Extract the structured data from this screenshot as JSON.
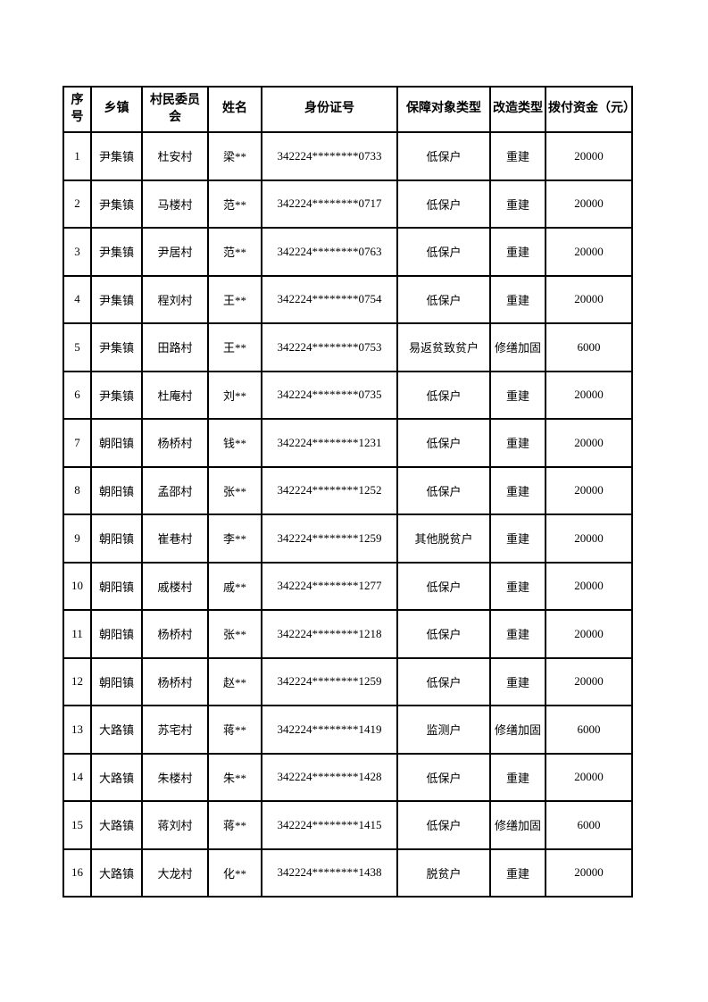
{
  "page": {
    "background_color": "#ffffff",
    "text_color": "#000000",
    "border_color": "#000000"
  },
  "table": {
    "headers": [
      "序号",
      "乡镇",
      "村民委员会",
      "姓名",
      "身份证号",
      "保障对象类型",
      "改造类型",
      "拨付资金（元）"
    ],
    "rows": [
      [
        "1",
        "尹集镇",
        "杜安村",
        "梁**",
        "342224********0733",
        "低保户",
        "重建",
        "20000"
      ],
      [
        "2",
        "尹集镇",
        "马楼村",
        "范**",
        "342224********0717",
        "低保户",
        "重建",
        "20000"
      ],
      [
        "3",
        "尹集镇",
        "尹居村",
        "范**",
        "342224********0763",
        "低保户",
        "重建",
        "20000"
      ],
      [
        "4",
        "尹集镇",
        "程刘村",
        "王**",
        "342224********0754",
        "低保户",
        "重建",
        "20000"
      ],
      [
        "5",
        "尹集镇",
        "田路村",
        "王**",
        "342224********0753",
        "易返贫致贫户",
        "修缮加固",
        "6000"
      ],
      [
        "6",
        "尹集镇",
        "杜庵村",
        "刘**",
        "342224********0735",
        "低保户",
        "重建",
        "20000"
      ],
      [
        "7",
        "朝阳镇",
        "杨桥村",
        "钱**",
        "342224********1231",
        "低保户",
        "重建",
        "20000"
      ],
      [
        "8",
        "朝阳镇",
        "孟邵村",
        "张**",
        "342224********1252",
        "低保户",
        "重建",
        "20000"
      ],
      [
        "9",
        "朝阳镇",
        "崔巷村",
        "李**",
        "342224********1259",
        "其他脱贫户",
        "重建",
        "20000"
      ],
      [
        "10",
        "朝阳镇",
        "戚楼村",
        "戚**",
        "342224********1277",
        "低保户",
        "重建",
        "20000"
      ],
      [
        "11",
        "朝阳镇",
        "杨桥村",
        "张**",
        "342224********1218",
        "低保户",
        "重建",
        "20000"
      ],
      [
        "12",
        "朝阳镇",
        "杨桥村",
        "赵**",
        "342224********1259",
        "低保户",
        "重建",
        "20000"
      ],
      [
        "13",
        "大路镇",
        "苏宅村",
        "蒋**",
        "342224********1419",
        "监测户",
        "修缮加固",
        "6000"
      ],
      [
        "14",
        "大路镇",
        "朱楼村",
        "朱**",
        "342224********1428",
        "低保户",
        "重建",
        "20000"
      ],
      [
        "15",
        "大路镇",
        "蒋刘村",
        "蒋**",
        "342224********1415",
        "低保户",
        "修缮加固",
        "6000"
      ],
      [
        "16",
        "大路镇",
        "大龙村",
        "化**",
        "342224********1438",
        "脱贫户",
        "重建",
        "20000"
      ]
    ]
  }
}
